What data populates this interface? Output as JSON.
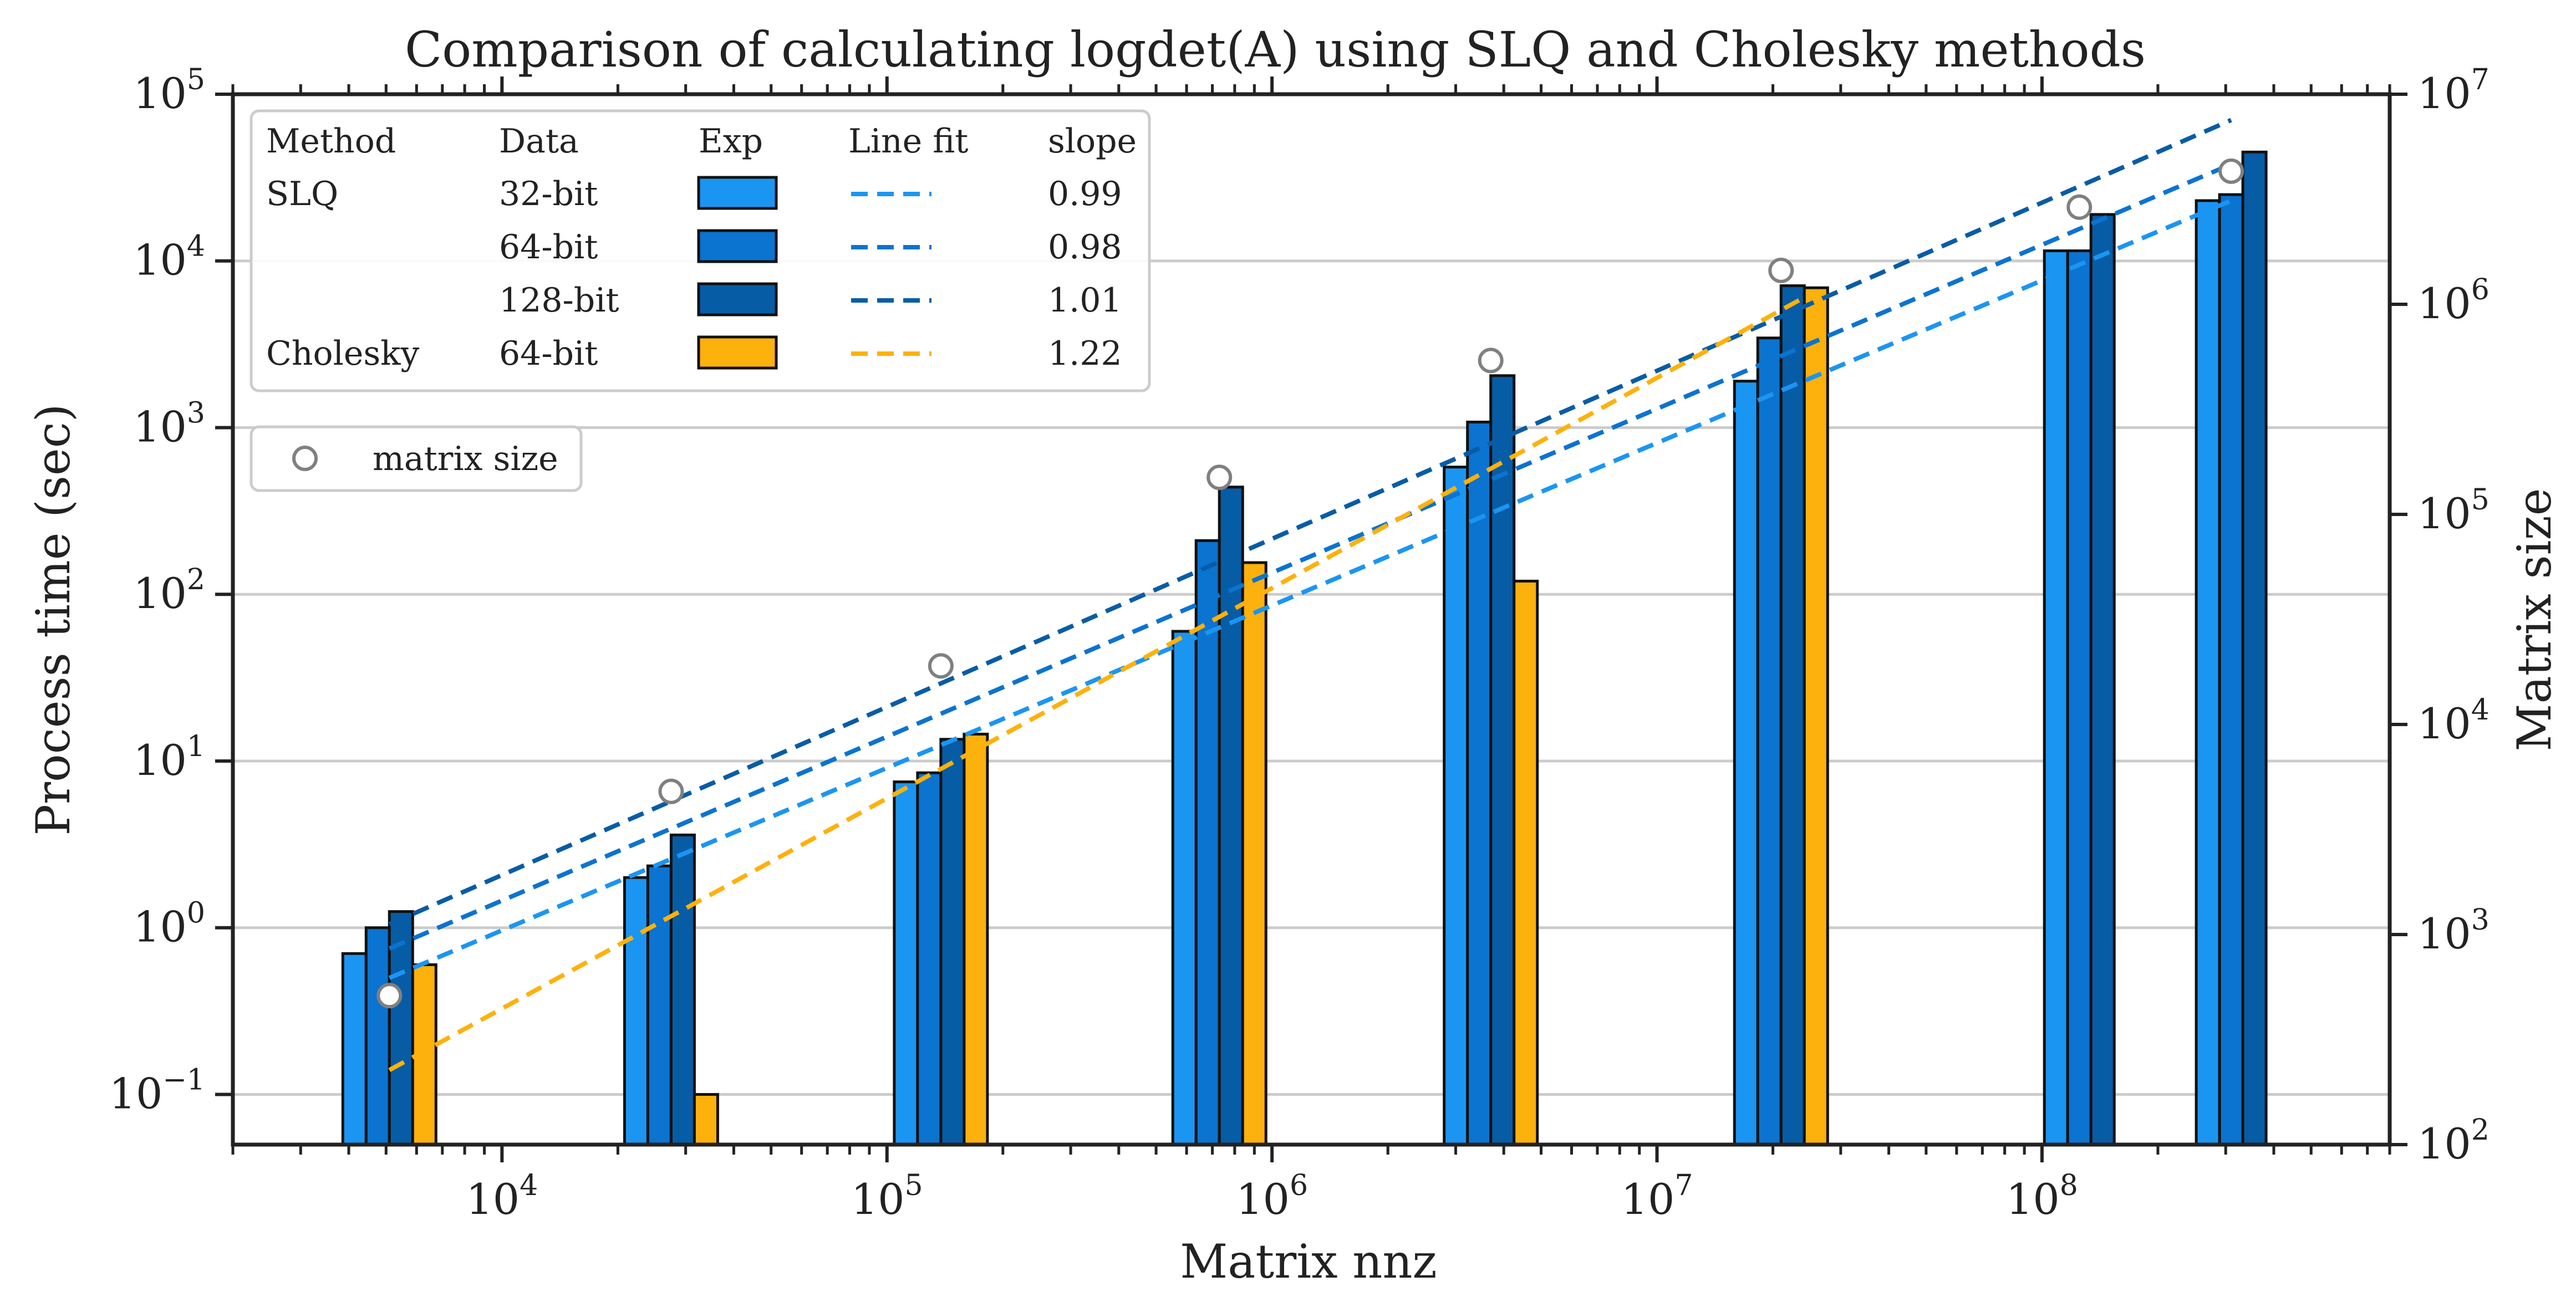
{
  "chart_data": {
    "type": "bar",
    "title": "Comparison of calculating logdet(A) using SLQ and Cholesky methods",
    "xlabel": "Matrix nnz",
    "ylabel": "Process time (sec)",
    "y2label": "Matrix size",
    "x_scale": "log",
    "y_scale": "log",
    "y2_scale": "log",
    "xlim": [
      2000,
      800000000
    ],
    "ylim": [
      0.05,
      100000
    ],
    "y2lim": [
      100,
      10000000
    ],
    "x_ticks": [
      {
        "base": "10",
        "exp": "4"
      },
      {
        "base": "10",
        "exp": "5"
      },
      {
        "base": "10",
        "exp": "6"
      },
      {
        "base": "10",
        "exp": "7"
      },
      {
        "base": "10",
        "exp": "8"
      }
    ],
    "y_ticks": [
      {
        "base": "10",
        "exp": "−1"
      },
      {
        "base": "10",
        "exp": "0"
      },
      {
        "base": "10",
        "exp": "1"
      },
      {
        "base": "10",
        "exp": "2"
      },
      {
        "base": "10",
        "exp": "3"
      },
      {
        "base": "10",
        "exp": "4"
      },
      {
        "base": "10",
        "exp": "5"
      }
    ],
    "y2_ticks": [
      {
        "base": "10",
        "exp": "2"
      },
      {
        "base": "10",
        "exp": "3"
      },
      {
        "base": "10",
        "exp": "4"
      },
      {
        "base": "10",
        "exp": "5"
      },
      {
        "base": "10",
        "exp": "6"
      },
      {
        "base": "10",
        "exp": "7"
      }
    ],
    "grid": "horizontal major",
    "legend_position": "upper left",
    "groups": [
      {
        "nnz": 5100,
        "matrix_size": 512,
        "times": {
          "slq_32": 0.7,
          "slq_64": 1.0,
          "slq_128": 1.25,
          "chol_64": 0.6
        }
      },
      {
        "nnz": 27500,
        "matrix_size": 4800,
        "times": {
          "slq_32": 2.0,
          "slq_64": 2.35,
          "slq_128": 3.6,
          "chol_64": 0.1
        }
      },
      {
        "nnz": 138000,
        "matrix_size": 19000,
        "times": {
          "slq_32": 7.5,
          "slq_64": 8.5,
          "slq_128": 13.5,
          "chol_64": 14.5
        }
      },
      {
        "nnz": 730000,
        "matrix_size": 150000,
        "times": {
          "slq_32": 60,
          "slq_64": 210,
          "slq_128": 440,
          "chol_64": 155
        }
      },
      {
        "nnz": 3700000,
        "matrix_size": 540000,
        "times": {
          "slq_32": 580,
          "slq_64": 1080,
          "slq_128": 2050,
          "chol_64": 120
        }
      },
      {
        "nnz": 21000000,
        "matrix_size": 1450000,
        "times": {
          "slq_32": 1900,
          "slq_64": 3450,
          "slq_128": 7100,
          "chol_64": 6900
        }
      },
      {
        "nnz": 125000000,
        "matrix_size": 2900000,
        "times": {
          "slq_32": 11500,
          "slq_64": 11500,
          "slq_128": 19000
        }
      },
      {
        "nnz": 310000000,
        "matrix_size": 4300000,
        "times": {
          "slq_32": 23000,
          "slq_64": 25000,
          "slq_128": 45000
        }
      }
    ],
    "series": [
      {
        "key": "slq_32",
        "method": "SLQ",
        "data": "32-bit",
        "slope": "0.99",
        "color": "#1b95f2",
        "fit": {
          "x": [
            5100,
            310000000
          ],
          "y": [
            0.5,
            23000
          ]
        }
      },
      {
        "key": "slq_64",
        "method": "",
        "data": "64-bit",
        "slope": "0.98",
        "color": "#0b73d0",
        "fit": {
          "x": [
            5100,
            310000000
          ],
          "y": [
            0.75,
            38000
          ]
        }
      },
      {
        "key": "slq_128",
        "method": "",
        "data": "128-bit",
        "slope": "1.01",
        "color": "#075ca6",
        "fit": {
          "x": [
            5100,
            310000000
          ],
          "y": [
            1.05,
            70000
          ]
        }
      },
      {
        "key": "chol_64",
        "method": "Cholesky",
        "data": "64-bit",
        "slope": "1.22",
        "color": "#fdb10c",
        "fit": {
          "x": [
            5100,
            24000000
          ],
          "y": [
            0.14,
            6000
          ]
        }
      }
    ],
    "legend": {
      "headers": [
        "Method",
        "Data",
        "Exp",
        "Line fit",
        "slope"
      ],
      "marker_label": "matrix size"
    }
  }
}
